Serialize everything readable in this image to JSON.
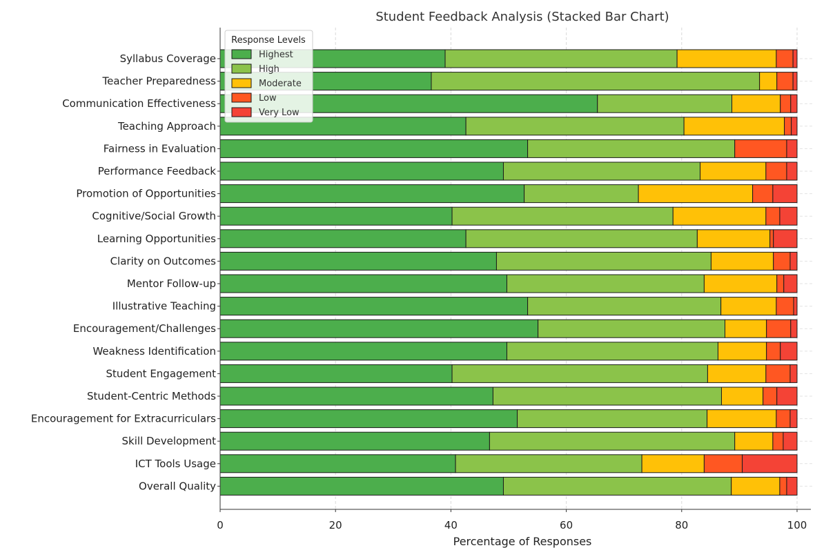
{
  "chart_data": {
    "type": "bar",
    "orientation": "horizontal",
    "stacked": true,
    "title": "Student Feedback Analysis (Stacked Bar Chart)",
    "xlabel": "Percentage of Responses",
    "ylabel": "",
    "xlim": [
      0,
      100
    ],
    "xticks": [
      0,
      20,
      40,
      60,
      80,
      100
    ],
    "grid": "x-dashed",
    "legend": {
      "title": "Response Levels",
      "placement": "top-left"
    },
    "categories": [
      "Syllabus Coverage",
      "Teacher Preparedness",
      "Communication Effectiveness",
      "Teaching Approach",
      "Fairness in Evaluation",
      "Performance Feedback",
      "Promotion of Opportunities",
      "Cognitive/Social Growth",
      "Learning Opportunities",
      "Clarity on Outcomes",
      "Mentor Follow-up",
      "Illustrative Teaching",
      "Encouragement/Challenges",
      "Weakness Identification",
      "Student Engagement",
      "Student-Centric Methods",
      "Encouragement for Extracurriculars",
      "Skill Development",
      "ICT Tools Usage",
      "Overall Quality"
    ],
    "series": [
      {
        "name": "Highest",
        "color": "#4cae4c",
        "values": [
          39.0,
          36.6,
          65.4,
          42.6,
          53.3,
          49.1,
          52.7,
          40.2,
          42.6,
          47.9,
          49.7,
          53.3,
          55.1,
          49.7,
          40.2,
          47.3,
          51.5,
          46.7,
          40.8,
          49.1
        ]
      },
      {
        "name": "High",
        "color": "#8bc34a",
        "values": [
          40.2,
          56.9,
          23.3,
          37.8,
          35.9,
          34.1,
          19.8,
          38.3,
          40.1,
          37.2,
          34.2,
          33.5,
          32.4,
          36.6,
          44.3,
          39.6,
          32.9,
          42.5,
          32.3,
          39.5
        ]
      },
      {
        "name": "Moderate",
        "color": "#ffc107",
        "values": [
          17.2,
          3.0,
          8.4,
          17.4,
          0.0,
          11.4,
          19.8,
          16.1,
          12.6,
          10.8,
          12.6,
          9.6,
          7.2,
          8.4,
          10.1,
          7.2,
          12.0,
          6.6,
          10.8,
          8.4
        ]
      },
      {
        "name": "Low",
        "color": "#ff5722",
        "values": [
          2.9,
          2.8,
          1.8,
          1.2,
          9.0,
          3.6,
          3.5,
          2.4,
          0.6,
          2.9,
          1.2,
          3.0,
          4.2,
          2.4,
          4.2,
          2.4,
          2.4,
          1.8,
          6.6,
          1.2
        ]
      },
      {
        "name": "Very Low",
        "color": "#f44336",
        "values": [
          0.7,
          0.7,
          1.1,
          1.0,
          1.8,
          1.8,
          4.2,
          3.0,
          4.1,
          1.2,
          2.3,
          0.6,
          1.1,
          2.9,
          1.2,
          3.5,
          1.2,
          2.4,
          9.5,
          1.8
        ]
      }
    ]
  }
}
